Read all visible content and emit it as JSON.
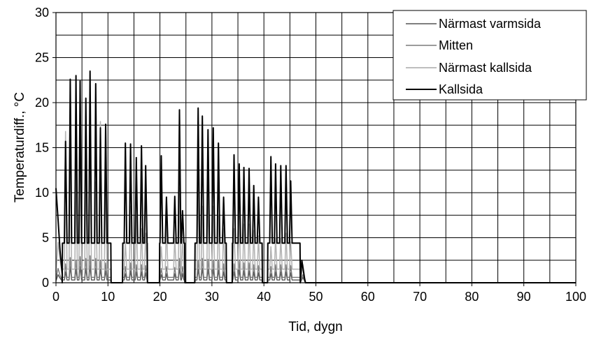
{
  "chart_data": {
    "type": "line",
    "xlabel": "Tid, dygn",
    "ylabel": "Temperaturdiff., °C",
    "xlim": [
      0,
      100
    ],
    "ylim": [
      0,
      30
    ],
    "x_ticks": [
      0,
      10,
      20,
      30,
      40,
      50,
      60,
      70,
      80,
      90,
      100
    ],
    "y_ticks": [
      0,
      5,
      10,
      15,
      20,
      25,
      30
    ],
    "x_grid_step": 5,
    "y_grid_step": 2.5,
    "grid": true,
    "legend_position": "top-right",
    "blocks": [
      [
        1.2,
        10.6
      ],
      [
        12.8,
        17.6
      ],
      [
        19.9,
        24.8
      ],
      [
        26.7,
        32.8
      ],
      [
        33.9,
        39.7
      ],
      [
        40.7,
        47.0
      ]
    ],
    "series": [
      {
        "name": "Närmast varmsida",
        "color": "#555555",
        "width": 1.4,
        "base": 0.3,
        "points": [
          [
            0,
            0.2
          ],
          [
            0.4,
            0.9
          ],
          [
            0.8,
            0.5
          ],
          [
            1.2,
            0.2
          ],
          [
            47,
            0.1
          ],
          [
            47.5,
            0.6
          ],
          [
            48,
            0
          ],
          [
            100,
            0
          ]
        ],
        "peaks": [
          [
            1.9,
            1.2
          ],
          [
            2.8,
            1.8
          ],
          [
            3.9,
            1.5
          ],
          [
            4.7,
            1.8
          ],
          [
            5.8,
            1.6
          ],
          [
            6.6,
            1.9
          ],
          [
            7.7,
            1.6
          ],
          [
            8.6,
            1.5
          ],
          [
            9.6,
            1.3
          ],
          [
            13.4,
            1.0
          ],
          [
            14.4,
            1.3
          ],
          [
            15.5,
            1.2
          ],
          [
            16.5,
            1.2
          ],
          [
            17.3,
            1.1
          ],
          [
            20.3,
            0.9
          ],
          [
            21.3,
            1.0
          ],
          [
            22.9,
            1.0
          ],
          [
            23.8,
            1.6
          ],
          [
            24.4,
            1.0
          ],
          [
            27.4,
            1.5
          ],
          [
            28.2,
            1.6
          ],
          [
            29.3,
            1.5
          ],
          [
            30.3,
            1.5
          ],
          [
            31.3,
            1.4
          ],
          [
            32.3,
            1.2
          ],
          [
            34.3,
            1.2
          ],
          [
            35.3,
            1.4
          ],
          [
            36.2,
            1.3
          ],
          [
            37.2,
            1.3
          ],
          [
            38.1,
            1.2
          ],
          [
            39.0,
            1.1
          ],
          [
            41.4,
            1.0
          ],
          [
            42.3,
            1.2
          ],
          [
            43.3,
            1.2
          ],
          [
            44.3,
            1.2
          ],
          [
            45.2,
            1.1
          ]
        ]
      },
      {
        "name": "Mitten",
        "color": "#7a7a7a",
        "width": 1.4,
        "base": 0.6,
        "points": [
          [
            0,
            0.5
          ],
          [
            0.4,
            1.6
          ],
          [
            0.8,
            0.8
          ],
          [
            1.2,
            0.3
          ],
          [
            47,
            0.2
          ],
          [
            47.5,
            0.9
          ],
          [
            48,
            0
          ],
          [
            100,
            0
          ]
        ],
        "peaks": [
          [
            1.9,
            2.1
          ],
          [
            2.8,
            2.8
          ],
          [
            3.9,
            2.5
          ],
          [
            4.7,
            2.9
          ],
          [
            5.8,
            2.7
          ],
          [
            6.6,
            3.0
          ],
          [
            7.7,
            2.7
          ],
          [
            8.6,
            2.5
          ],
          [
            9.6,
            2.2
          ],
          [
            13.4,
            1.8
          ],
          [
            14.4,
            2.2
          ],
          [
            15.5,
            2.0
          ],
          [
            16.5,
            2.0
          ],
          [
            17.3,
            1.9
          ],
          [
            20.3,
            1.6
          ],
          [
            21.3,
            1.8
          ],
          [
            22.9,
            1.7
          ],
          [
            23.8,
            2.7
          ],
          [
            24.4,
            1.8
          ],
          [
            27.4,
            2.5
          ],
          [
            28.2,
            2.7
          ],
          [
            29.3,
            2.6
          ],
          [
            30.3,
            2.5
          ],
          [
            31.3,
            2.4
          ],
          [
            32.3,
            2.1
          ],
          [
            34.3,
            2.1
          ],
          [
            35.3,
            2.4
          ],
          [
            36.2,
            2.2
          ],
          [
            37.2,
            2.2
          ],
          [
            38.1,
            2.0
          ],
          [
            39.0,
            1.9
          ],
          [
            41.4,
            1.8
          ],
          [
            42.3,
            2.0
          ],
          [
            43.3,
            2.0
          ],
          [
            44.3,
            2.0
          ],
          [
            45.2,
            1.9
          ]
        ]
      },
      {
        "name": "Närmast kallsida",
        "color": "#b4b4b4",
        "width": 1.6,
        "base": 1.5,
        "points": [
          [
            0,
            1.2
          ],
          [
            0.4,
            4.5
          ],
          [
            0.8,
            2.5
          ],
          [
            1.2,
            1.0
          ],
          [
            47,
            0.4
          ],
          [
            47.5,
            2.0
          ],
          [
            48,
            0
          ],
          [
            100,
            0
          ]
        ],
        "peaks": [
          [
            1.9,
            16.8
          ],
          [
            2.8,
            17.5
          ],
          [
            3.9,
            12.5
          ],
          [
            4.7,
            18.8
          ],
          [
            5.8,
            13.0
          ],
          [
            6.6,
            17.8
          ],
          [
            7.7,
            11.2
          ],
          [
            8.6,
            17.9
          ],
          [
            9.6,
            13.0
          ],
          [
            13.4,
            4.5
          ],
          [
            14.4,
            8.5
          ],
          [
            15.5,
            7.5
          ],
          [
            16.5,
            6.0
          ],
          [
            17.3,
            5.5
          ],
          [
            20.3,
            4.0
          ],
          [
            21.3,
            6.5
          ],
          [
            22.9,
            5.0
          ],
          [
            23.8,
            10.5
          ],
          [
            24.4,
            4.8
          ],
          [
            27.4,
            11.5
          ],
          [
            28.2,
            8.5
          ],
          [
            29.3,
            10.0
          ],
          [
            30.3,
            8.5
          ],
          [
            31.3,
            7.5
          ],
          [
            32.3,
            6.0
          ],
          [
            34.3,
            6.0
          ],
          [
            35.3,
            7.5
          ],
          [
            36.2,
            6.5
          ],
          [
            37.2,
            6.5
          ],
          [
            38.1,
            5.8
          ],
          [
            39.0,
            5.2
          ],
          [
            41.4,
            4.0
          ],
          [
            42.3,
            5.0
          ],
          [
            43.3,
            5.0
          ],
          [
            44.3,
            5.5
          ],
          [
            45.2,
            4.5
          ]
        ]
      },
      {
        "name": "Kallsida",
        "color": "#000000",
        "width": 2,
        "base": 4.4,
        "points": [
          [
            0,
            10.5
          ],
          [
            0.4,
            7.0
          ],
          [
            0.8,
            3.5
          ],
          [
            1.2,
            1.0
          ],
          [
            47,
            0.5
          ],
          [
            47.3,
            2.5
          ],
          [
            47.8,
            0.5
          ],
          [
            48,
            0
          ],
          [
            100,
            0
          ]
        ],
        "peaks": [
          [
            1.9,
            15.7
          ],
          [
            2.8,
            22.6
          ],
          [
            3.9,
            23.0
          ],
          [
            4.7,
            22.4
          ],
          [
            5.8,
            20.5
          ],
          [
            6.6,
            23.5
          ],
          [
            7.7,
            22.1
          ],
          [
            8.6,
            17.2
          ],
          [
            9.6,
            17.6
          ],
          [
            13.4,
            15.5
          ],
          [
            14.4,
            15.4
          ],
          [
            15.5,
            13.9
          ],
          [
            16.5,
            15.2
          ],
          [
            17.3,
            13.0
          ],
          [
            20.3,
            14.1
          ],
          [
            21.3,
            9.5
          ],
          [
            22.9,
            9.6
          ],
          [
            23.8,
            19.2
          ],
          [
            24.4,
            8.0
          ],
          [
            27.4,
            19.4
          ],
          [
            28.2,
            18.5
          ],
          [
            29.3,
            17.0
          ],
          [
            30.3,
            17.2
          ],
          [
            31.3,
            15.5
          ],
          [
            32.3,
            9.5
          ],
          [
            34.3,
            14.2
          ],
          [
            35.3,
            13.2
          ],
          [
            36.2,
            12.8
          ],
          [
            37.2,
            12.7
          ],
          [
            38.1,
            10.8
          ],
          [
            39.0,
            9.5
          ],
          [
            41.4,
            14.0
          ],
          [
            42.3,
            13.2
          ],
          [
            43.3,
            13.0
          ],
          [
            44.3,
            13.0
          ],
          [
            45.2,
            11.3
          ]
        ]
      }
    ]
  },
  "legend": {
    "items": [
      {
        "label": "Närmast varmsida",
        "color": "#555555"
      },
      {
        "label": "Mitten",
        "color": "#7a7a7a"
      },
      {
        "label": "Närmast kallsida",
        "color": "#b4b4b4"
      },
      {
        "label": "Kallsida",
        "color": "#000000"
      }
    ]
  }
}
